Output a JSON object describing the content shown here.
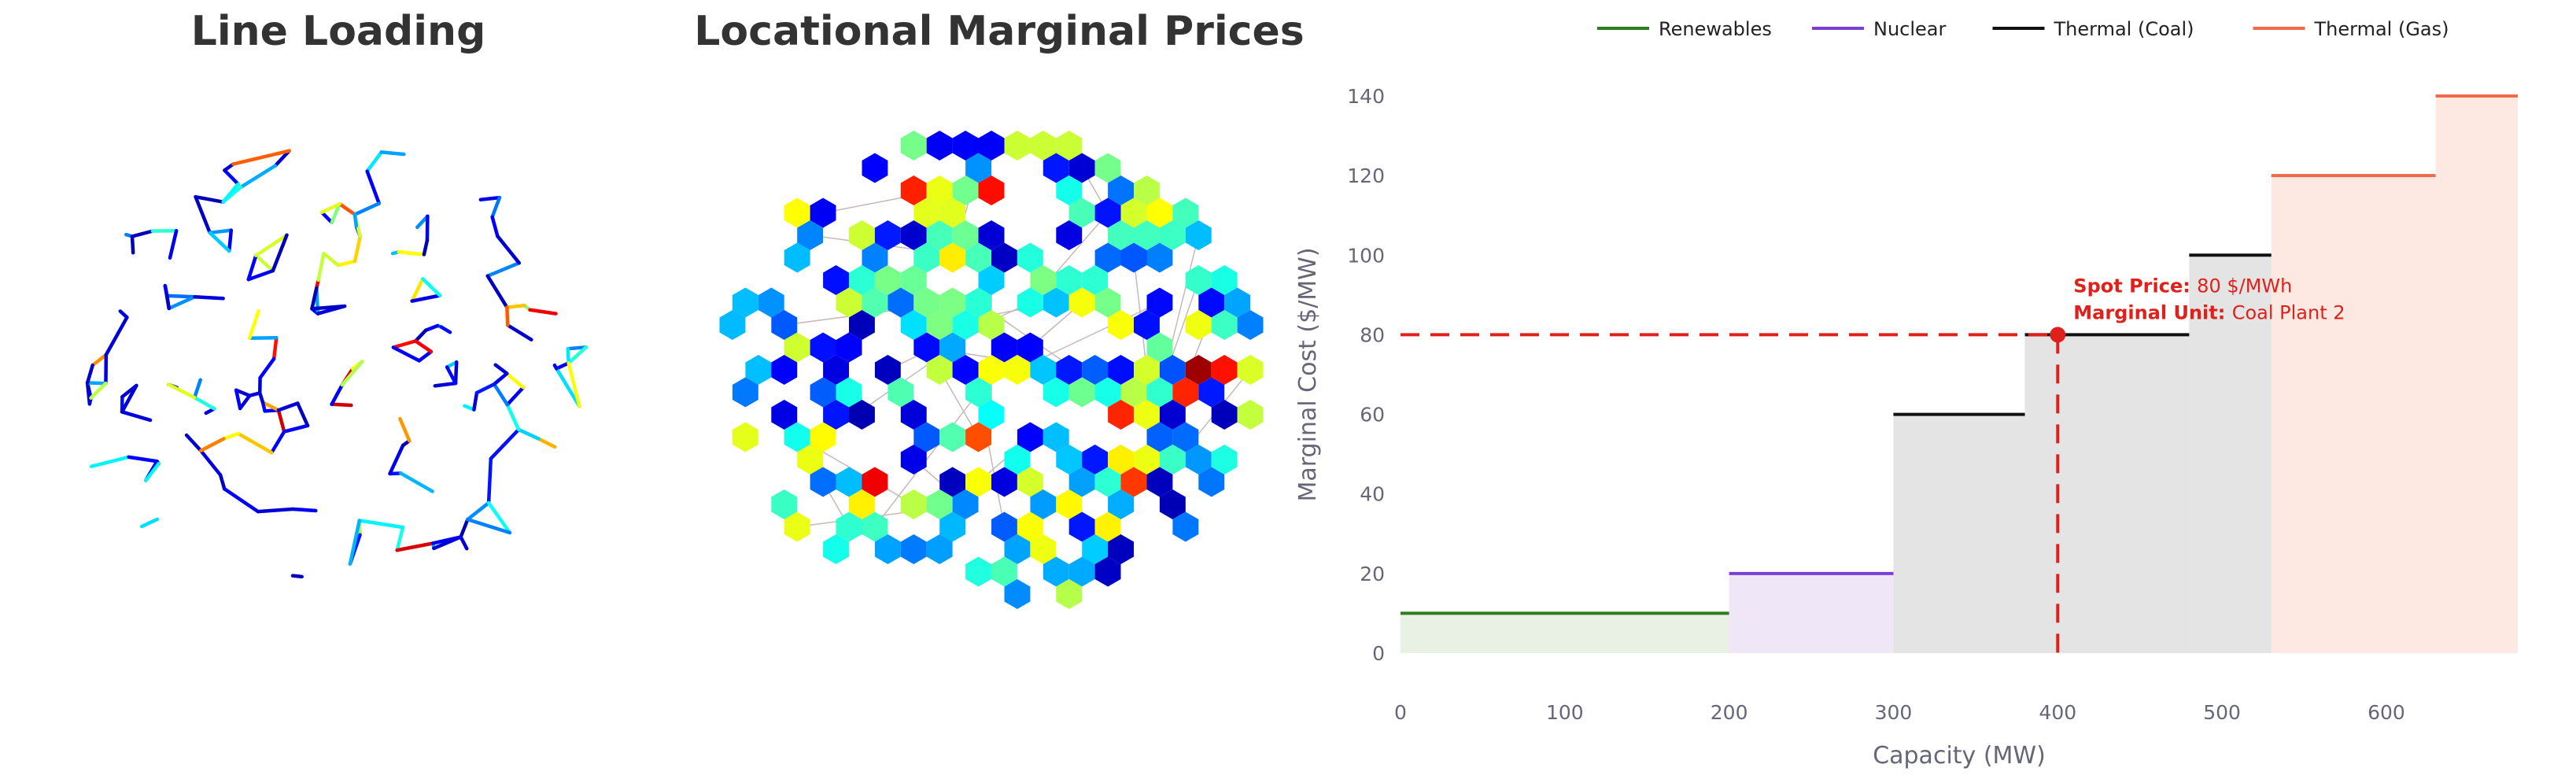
{
  "panels": {
    "line_loading": {
      "title": "Line Loading"
    },
    "lmp": {
      "title": "Locational Marginal Prices"
    }
  },
  "colors": {
    "renewables": "#2e7d1f",
    "nuclear": "#7a3fd6",
    "coal": "#111111",
    "gas": "#f06a4a",
    "spot": "#e0201a",
    "gray_fill": "#e4e4e4",
    "renewables_fill": "#e8f1e4",
    "nuclear_fill": "#efe6f8",
    "gas_fill": "#fde8e2",
    "jet_low": "#00008f",
    "jet_high": "#800000"
  },
  "chart_data": {
    "type": "line",
    "xlabel": "Capacity (MW)",
    "ylabel": "Marginal Cost ($/MW)",
    "xlim": [
      0,
      680
    ],
    "ylim": [
      0,
      140
    ],
    "xticks": [
      0,
      100,
      200,
      300,
      400,
      500,
      600
    ],
    "yticks": [
      0,
      20,
      40,
      60,
      80,
      100,
      120,
      140
    ],
    "grid": false,
    "legend_position": "top",
    "series": [
      {
        "name": "Renewables",
        "color_key": "renewables",
        "steps": [
          {
            "x0": 0,
            "x1": 200,
            "y": 10
          }
        ]
      },
      {
        "name": "Nuclear",
        "color_key": "nuclear",
        "steps": [
          {
            "x0": 200,
            "x1": 300,
            "y": 20
          }
        ]
      },
      {
        "name": "Thermal (Coal)",
        "color_key": "coal",
        "steps": [
          {
            "x0": 300,
            "x1": 380,
            "y": 60
          },
          {
            "x0": 380,
            "x1": 480,
            "y": 80
          },
          {
            "x0": 480,
            "x1": 530,
            "y": 100
          }
        ]
      },
      {
        "name": "Thermal (Gas)",
        "color_key": "gas",
        "steps": [
          {
            "x0": 530,
            "x1": 630,
            "y": 120
          },
          {
            "x0": 630,
            "x1": 680,
            "y": 140
          }
        ]
      }
    ],
    "spot": {
      "x": 400,
      "y": 80,
      "price_label": "Spot Price:",
      "price_value": "80 $/MWh",
      "unit_label": "Marginal Unit:",
      "unit_value": "Coal Plant 2"
    }
  }
}
